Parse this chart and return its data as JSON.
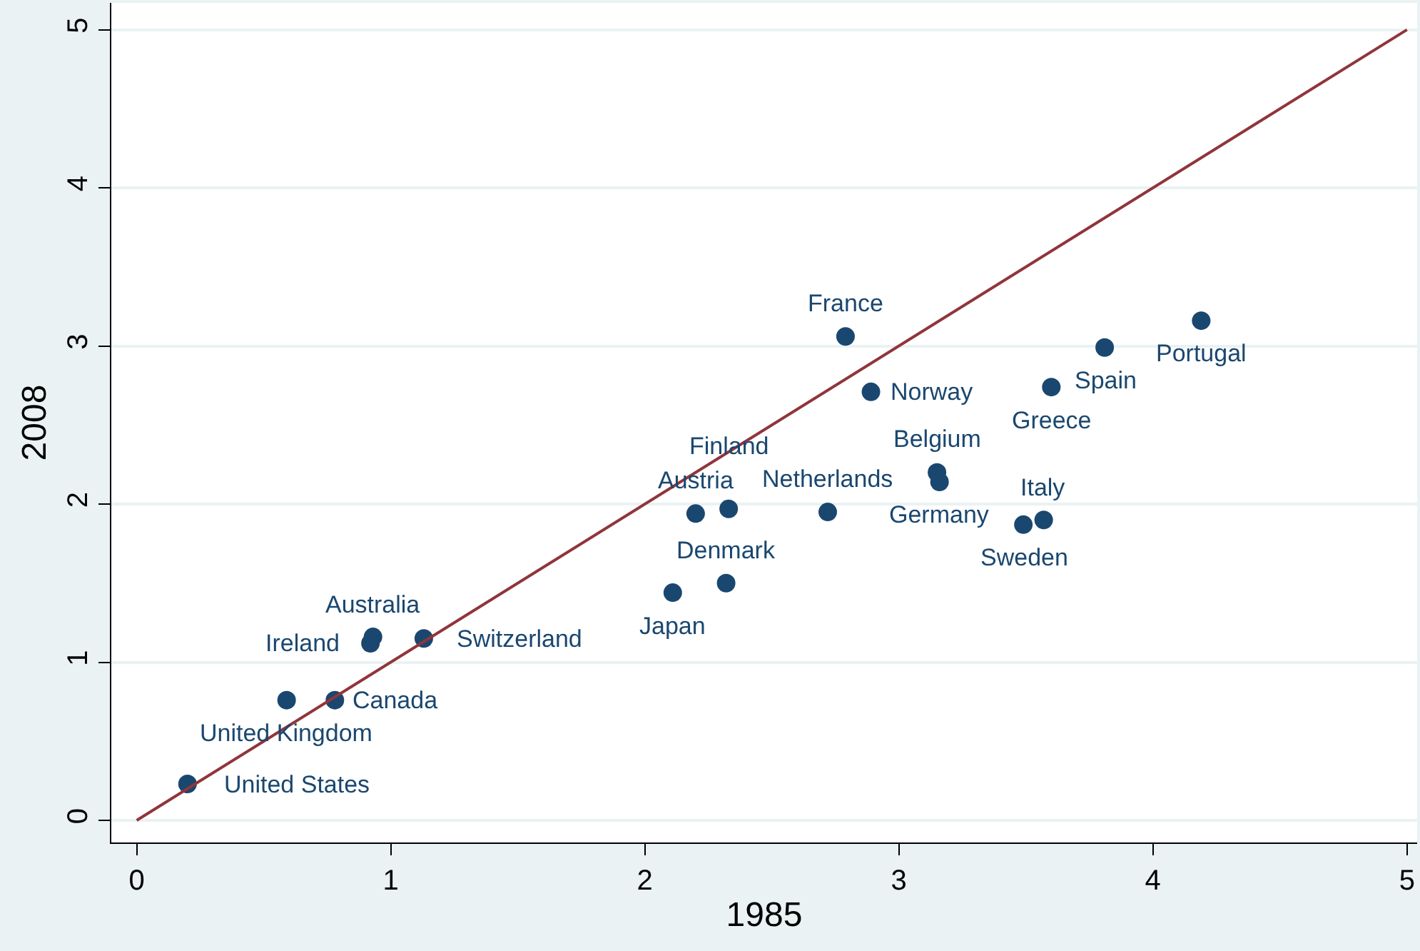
{
  "chart_data": {
    "type": "scatter",
    "xlabel": "1985",
    "ylabel": "2008",
    "xlim": [
      -0.1,
      5.04
    ],
    "ylim": [
      -0.14,
      5.17
    ],
    "xticks": [
      0,
      1,
      2,
      3,
      4,
      5
    ],
    "yticks": [
      0,
      1,
      2,
      3,
      4,
      5
    ],
    "grid": "y",
    "marker": "circle",
    "series": [
      {
        "color": "#1a476f",
        "x": [
          0.2,
          0.59,
          0.78,
          0.93,
          0.92,
          1.13,
          2.11,
          2.32,
          2.2,
          2.33,
          2.72,
          3.15,
          3.16,
          3.49,
          3.57,
          2.79,
          2.89,
          3.6,
          3.81,
          4.19
        ],
        "values": [
          0.23,
          0.76,
          0.76,
          1.16,
          1.12,
          1.15,
          1.44,
          1.5,
          1.94,
          1.97,
          1.95,
          2.2,
          2.14,
          1.87,
          1.9,
          3.06,
          2.71,
          2.74,
          2.99,
          3.16
        ]
      },
      {
        "type": "line",
        "marker": "none",
        "color": "#90353b",
        "line_style": "solid",
        "x": [
          0,
          5
        ],
        "values": [
          0,
          5
        ]
      }
    ],
    "annotations": [
      {
        "text": "United States",
        "x": 0.2,
        "y": 0.23
      },
      {
        "text": "United Kingdom",
        "x": 0.59,
        "y": 0.76
      },
      {
        "text": "Canada",
        "x": 0.78,
        "y": 0.76
      },
      {
        "text": "Australia",
        "x": 0.93,
        "y": 1.16
      },
      {
        "text": "Ireland",
        "x": 0.92,
        "y": 1.12
      },
      {
        "text": "Switzerland",
        "x": 1.13,
        "y": 1.15
      },
      {
        "text": "Japan",
        "x": 2.11,
        "y": 1.44
      },
      {
        "text": "Denmark",
        "x": 2.32,
        "y": 1.5
      },
      {
        "text": "Austria",
        "x": 2.2,
        "y": 1.94
      },
      {
        "text": "Finland",
        "x": 2.33,
        "y": 1.97
      },
      {
        "text": "Netherlands",
        "x": 2.72,
        "y": 1.95
      },
      {
        "text": "Belgium",
        "x": 3.15,
        "y": 2.2
      },
      {
        "text": "Germany",
        "x": 3.16,
        "y": 2.14
      },
      {
        "text": "Sweden",
        "x": 3.49,
        "y": 1.87
      },
      {
        "text": "Italy",
        "x": 3.57,
        "y": 1.9
      },
      {
        "text": "France",
        "x": 2.79,
        "y": 3.06
      },
      {
        "text": "Norway",
        "x": 2.89,
        "y": 2.71
      },
      {
        "text": "Greece",
        "x": 3.6,
        "y": 2.74
      },
      {
        "text": "Spain",
        "x": 3.81,
        "y": 2.99
      },
      {
        "text": "Portugal",
        "x": 4.19,
        "y": 3.16
      }
    ]
  }
}
